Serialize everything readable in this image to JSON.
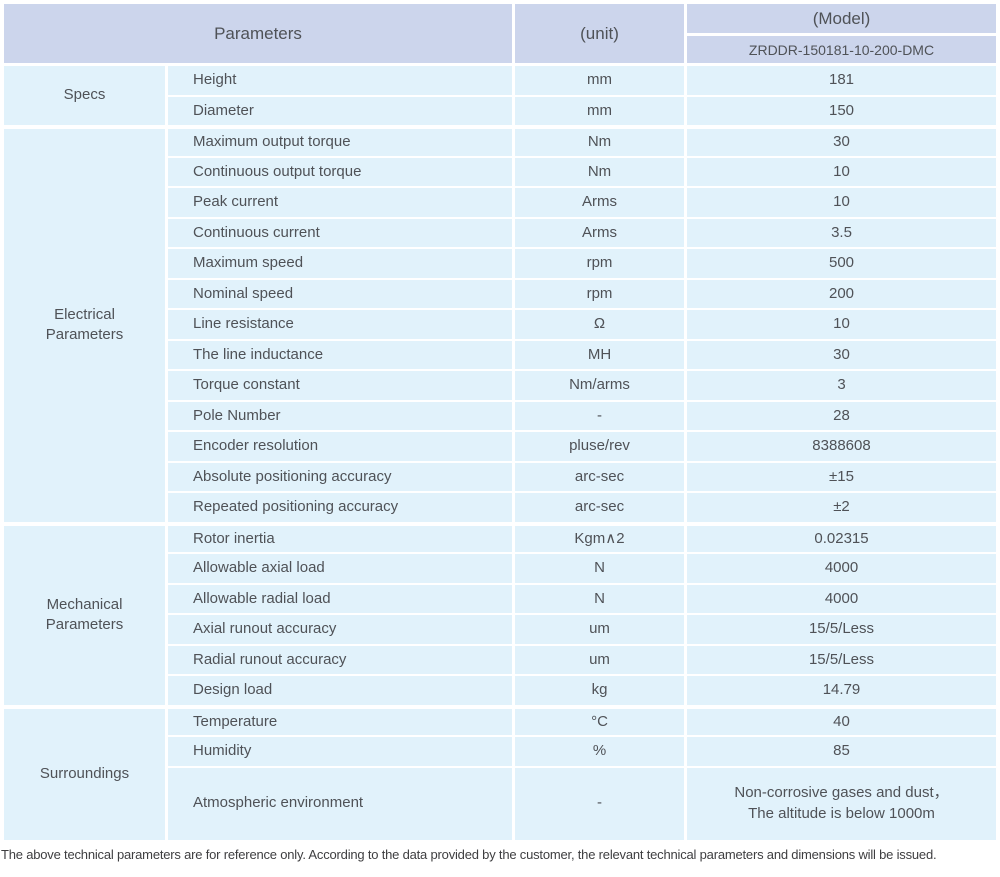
{
  "colors": {
    "header_bg": "#ccd5ec",
    "body_bg": "#e1f2fb",
    "text_color": "#4f5257",
    "footnote_color": "#3e3e40",
    "separator": "#ffffff"
  },
  "table": {
    "header": {
      "parameters_label": "Parameters",
      "unit_label": "(unit)",
      "model_label": "(Model)",
      "model_value": "ZRDDR-150181-10-200-DMC"
    },
    "sections": [
      {
        "group": "Specs",
        "rows": [
          {
            "param": "Height",
            "unit": "mm",
            "value": "181"
          },
          {
            "param": "Diameter",
            "unit": "mm",
            "value": "150"
          }
        ]
      },
      {
        "group": "Electrical\nParameters",
        "rows": [
          {
            "param": "Maximum output torque",
            "unit": "Nm",
            "value": "30"
          },
          {
            "param": "Continuous output torque",
            "unit": "Nm",
            "value": "10"
          },
          {
            "param": "Peak current",
            "unit": "Arms",
            "value": "10"
          },
          {
            "param": "Continuous current",
            "unit": "Arms",
            "value": "3.5"
          },
          {
            "param": "Maximum speed",
            "unit": "rpm",
            "value": "500"
          },
          {
            "param": "Nominal speed",
            "unit": "rpm",
            "value": "200"
          },
          {
            "param": "Line resistance",
            "unit": "Ω",
            "value": "10"
          },
          {
            "param": "The line inductance",
            "unit": "MH",
            "value": "30"
          },
          {
            "param": "Torque constant",
            "unit": "Nm/arms",
            "value": "3"
          },
          {
            "param": "Pole Number",
            "unit": "-",
            "value": "28"
          },
          {
            "param": "Encoder resolution",
            "unit": "pluse/rev",
            "value": "8388608"
          },
          {
            "param": "Absolute positioning accuracy",
            "unit": "arc-sec",
            "value": "±15"
          },
          {
            "param": "Repeated positioning accuracy",
            "unit": "arc-sec",
            "value": "±2"
          }
        ]
      },
      {
        "group": "Mechanical\nParameters",
        "rows": [
          {
            "param": "Rotor inertia",
            "unit": "Kgm∧2",
            "value": "0.02315"
          },
          {
            "param": "Allowable axial load",
            "unit": "N",
            "value": "4000"
          },
          {
            "param": "Allowable radial load",
            "unit": "N",
            "value": "4000"
          },
          {
            "param": "Axial runout accuracy",
            "unit": "um",
            "value": "15/5/Less"
          },
          {
            "param": "Radial runout accuracy",
            "unit": "um",
            "value": "15/5/Less"
          },
          {
            "param": "Design load",
            "unit": "kg",
            "value": "14.79"
          }
        ]
      },
      {
        "group": "Surroundings",
        "rows": [
          {
            "param": "Temperature",
            "unit": "°C",
            "value": "40"
          },
          {
            "param": "Humidity",
            "unit": "%",
            "value": "85"
          },
          {
            "param": "Atmospheric environment",
            "unit": "-",
            "value": "Non-corrosive gases and dust，\nThe altitude is below 1000m"
          }
        ]
      }
    ],
    "footnote": "The above technical parameters are for reference only. According to the data provided by the customer, the relevant technical parameters and dimensions will be issued."
  }
}
